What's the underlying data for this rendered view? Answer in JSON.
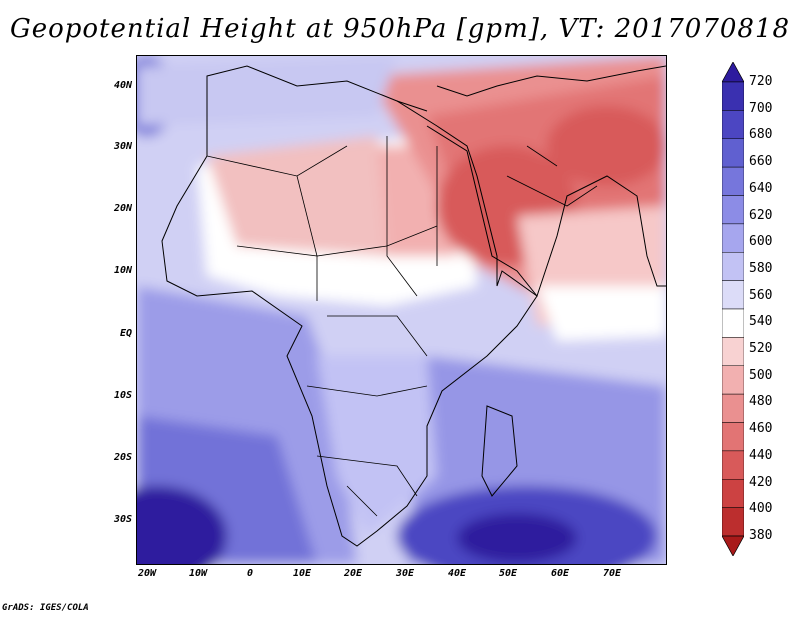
{
  "title": "Geopotential Height at 950hPa [gpm], VT: 2017070818",
  "credit": "GrADS: IGES/COLA",
  "map": {
    "lat_labels": [
      "40N",
      "30N",
      "20N",
      "10N",
      "EQ",
      "10S",
      "20S",
      "30S"
    ],
    "lon_labels": [
      "20W",
      "10W",
      "0",
      "10E",
      "20E",
      "30E",
      "40E",
      "50E",
      "60E",
      "70E"
    ],
    "lon_range": [
      -22,
      80
    ],
    "lat_range": [
      -37,
      45
    ]
  },
  "colorbar": {
    "levels": [
      "720",
      "700",
      "680",
      "660",
      "640",
      "620",
      "600",
      "580",
      "560",
      "540",
      "520",
      "500",
      "480",
      "460",
      "440",
      "420",
      "400",
      "380"
    ],
    "colors": [
      "#2d1b9e",
      "#3a30b0",
      "#4c46c2",
      "#6060d0",
      "#7676dc",
      "#8c8ce6",
      "#a6a6ee",
      "#c2c2f4",
      "#dcdcf8",
      "#ffffff",
      "#f8d2d2",
      "#f2b0b0",
      "#ea9090",
      "#e27474",
      "#d85a5a",
      "#cc4242",
      "#bc2e2e",
      "#a81a1a"
    ]
  }
}
